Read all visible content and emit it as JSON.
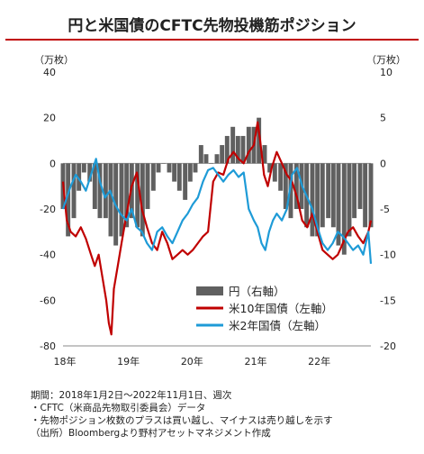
{
  "title": "円と米国債のCFTC先物投機筋ポジション",
  "left_unit": "（万枚）",
  "right_unit": "（万枚）",
  "notes": [
    "期間：2018年1月2日～2022年11月1日、週次",
    "・CFTC（米商品先物取引委員会）データ",
    "・先物ポジション枚数のプラスは買い越し、マイナスは売り越しを示す",
    "（出所）Bloombergより野村アセットマネジメント作成"
  ],
  "chart_data": {
    "type": "line",
    "title": "円と米国債のCFTC先物投機筋ポジション",
    "x_ticks": [
      "18年",
      "19年",
      "20年",
      "21年",
      "22年"
    ],
    "x_range": [
      2018.0,
      2022.84
    ],
    "left_axis": {
      "ticks": [
        40,
        20,
        0,
        -20,
        -40,
        -60,
        -80
      ],
      "range": [
        -80,
        40
      ]
    },
    "right_axis": {
      "ticks": [
        10,
        5,
        0,
        -5,
        -10,
        -15,
        -20
      ],
      "range": [
        -20,
        10
      ]
    },
    "legend_position": "bottom-center",
    "series": [
      {
        "name": "円（右軸）",
        "type": "bar",
        "axis": "right",
        "color": "#606060",
        "points": [
          [
            2018.0,
            -5
          ],
          [
            2018.08,
            -8
          ],
          [
            2018.17,
            -6
          ],
          [
            2018.25,
            -3
          ],
          [
            2018.33,
            -1
          ],
          [
            2018.42,
            -2
          ],
          [
            2018.5,
            -5
          ],
          [
            2018.58,
            -6
          ],
          [
            2018.67,
            -6
          ],
          [
            2018.75,
            -8
          ],
          [
            2018.83,
            -9
          ],
          [
            2018.92,
            -8
          ],
          [
            2019.0,
            -7
          ],
          [
            2019.08,
            -6
          ],
          [
            2019.17,
            -7
          ],
          [
            2019.25,
            -8
          ],
          [
            2019.33,
            -5
          ],
          [
            2019.42,
            -3
          ],
          [
            2019.5,
            -1
          ],
          [
            2019.58,
            0
          ],
          [
            2019.67,
            -1
          ],
          [
            2019.75,
            -2
          ],
          [
            2019.83,
            -3
          ],
          [
            2019.92,
            -4
          ],
          [
            2020.0,
            -2
          ],
          [
            2020.08,
            -1
          ],
          [
            2020.17,
            2
          ],
          [
            2020.25,
            1
          ],
          [
            2020.33,
            0
          ],
          [
            2020.42,
            1
          ],
          [
            2020.5,
            2
          ],
          [
            2020.58,
            3
          ],
          [
            2020.67,
            4
          ],
          [
            2020.75,
            3
          ],
          [
            2020.83,
            3
          ],
          [
            2020.92,
            4
          ],
          [
            2021.0,
            4
          ],
          [
            2021.08,
            5
          ],
          [
            2021.17,
            2
          ],
          [
            2021.25,
            -1
          ],
          [
            2021.33,
            -2
          ],
          [
            2021.42,
            -3
          ],
          [
            2021.5,
            -5
          ],
          [
            2021.58,
            -6
          ],
          [
            2021.67,
            -5
          ],
          [
            2021.75,
            -5
          ],
          [
            2021.83,
            -7
          ],
          [
            2021.92,
            -8
          ],
          [
            2022.0,
            -8
          ],
          [
            2022.08,
            -7
          ],
          [
            2022.17,
            -6
          ],
          [
            2022.25,
            -7
          ],
          [
            2022.33,
            -9
          ],
          [
            2022.42,
            -10
          ],
          [
            2022.5,
            -8
          ],
          [
            2022.58,
            -6
          ],
          [
            2022.67,
            -5
          ],
          [
            2022.75,
            -7
          ],
          [
            2022.84,
            -7
          ]
        ]
      },
      {
        "name": "米10年国債（左軸）",
        "type": "line",
        "axis": "left",
        "color": "#c00000",
        "points": [
          [
            2018.0,
            -8
          ],
          [
            2018.06,
            -25
          ],
          [
            2018.12,
            -30
          ],
          [
            2018.2,
            -32
          ],
          [
            2018.28,
            -28
          ],
          [
            2018.36,
            -33
          ],
          [
            2018.44,
            -40
          ],
          [
            2018.5,
            -45
          ],
          [
            2018.56,
            -40
          ],
          [
            2018.62,
            -50
          ],
          [
            2018.68,
            -60
          ],
          [
            2018.72,
            -70
          ],
          [
            2018.76,
            -75
          ],
          [
            2018.8,
            -55
          ],
          [
            2018.86,
            -45
          ],
          [
            2018.92,
            -35
          ],
          [
            2019.0,
            -22
          ],
          [
            2019.08,
            -10
          ],
          [
            2019.16,
            -4
          ],
          [
            2019.24,
            -20
          ],
          [
            2019.32,
            -28
          ],
          [
            2019.4,
            -35
          ],
          [
            2019.48,
            -38
          ],
          [
            2019.56,
            -30
          ],
          [
            2019.64,
            -35
          ],
          [
            2019.72,
            -42
          ],
          [
            2019.8,
            -40
          ],
          [
            2019.88,
            -38
          ],
          [
            2019.96,
            -40
          ],
          [
            2020.04,
            -38
          ],
          [
            2020.12,
            -35
          ],
          [
            2020.2,
            -32
          ],
          [
            2020.28,
            -30
          ],
          [
            2020.36,
            -8
          ],
          [
            2020.44,
            -4
          ],
          [
            2020.52,
            -5
          ],
          [
            2020.6,
            2
          ],
          [
            2020.68,
            5
          ],
          [
            2020.76,
            2
          ],
          [
            2020.84,
            0
          ],
          [
            2020.92,
            5
          ],
          [
            2021.0,
            8
          ],
          [
            2021.06,
            18
          ],
          [
            2021.1,
            10
          ],
          [
            2021.16,
            -5
          ],
          [
            2021.22,
            -10
          ],
          [
            2021.28,
            -2
          ],
          [
            2021.36,
            5
          ],
          [
            2021.44,
            0
          ],
          [
            2021.52,
            -5
          ],
          [
            2021.6,
            -8
          ],
          [
            2021.68,
            -15
          ],
          [
            2021.76,
            -25
          ],
          [
            2021.84,
            -28
          ],
          [
            2021.92,
            -22
          ],
          [
            2022.0,
            -30
          ],
          [
            2022.08,
            -38
          ],
          [
            2022.16,
            -40
          ],
          [
            2022.24,
            -42
          ],
          [
            2022.32,
            -40
          ],
          [
            2022.4,
            -35
          ],
          [
            2022.48,
            -30
          ],
          [
            2022.56,
            -28
          ],
          [
            2022.64,
            -32
          ],
          [
            2022.72,
            -35
          ],
          [
            2022.8,
            -30
          ],
          [
            2022.84,
            -25
          ]
        ]
      },
      {
        "name": "米2年国債（左軸）",
        "type": "line",
        "axis": "left",
        "color": "#1e9bd7",
        "points": [
          [
            2018.0,
            -20
          ],
          [
            2018.06,
            -15
          ],
          [
            2018.12,
            -10
          ],
          [
            2018.2,
            -5
          ],
          [
            2018.28,
            -8
          ],
          [
            2018.36,
            -12
          ],
          [
            2018.44,
            -5
          ],
          [
            2018.52,
            2
          ],
          [
            2018.58,
            -8
          ],
          [
            2018.66,
            -15
          ],
          [
            2018.74,
            -12
          ],
          [
            2018.82,
            -18
          ],
          [
            2018.9,
            -22
          ],
          [
            2019.0,
            -25
          ],
          [
            2019.08,
            -20
          ],
          [
            2019.16,
            -28
          ],
          [
            2019.24,
            -30
          ],
          [
            2019.32,
            -35
          ],
          [
            2019.4,
            -38
          ],
          [
            2019.48,
            -30
          ],
          [
            2019.56,
            -28
          ],
          [
            2019.64,
            -32
          ],
          [
            2019.72,
            -35
          ],
          [
            2019.8,
            -30
          ],
          [
            2019.88,
            -25
          ],
          [
            2019.96,
            -22
          ],
          [
            2020.04,
            -18
          ],
          [
            2020.12,
            -15
          ],
          [
            2020.2,
            -8
          ],
          [
            2020.28,
            -3
          ],
          [
            2020.36,
            -2
          ],
          [
            2020.44,
            -5
          ],
          [
            2020.52,
            -8
          ],
          [
            2020.6,
            -5
          ],
          [
            2020.68,
            -3
          ],
          [
            2020.76,
            -6
          ],
          [
            2020.84,
            -4
          ],
          [
            2020.92,
            -20
          ],
          [
            2021.0,
            -25
          ],
          [
            2021.06,
            -28
          ],
          [
            2021.12,
            -35
          ],
          [
            2021.18,
            -38
          ],
          [
            2021.24,
            -30
          ],
          [
            2021.3,
            -25
          ],
          [
            2021.36,
            -22
          ],
          [
            2021.44,
            -25
          ],
          [
            2021.52,
            -20
          ],
          [
            2021.6,
            -5
          ],
          [
            2021.68,
            -2
          ],
          [
            2021.76,
            -10
          ],
          [
            2021.84,
            -15
          ],
          [
            2021.92,
            -20
          ],
          [
            2022.0,
            -28
          ],
          [
            2022.08,
            -35
          ],
          [
            2022.16,
            -38
          ],
          [
            2022.24,
            -35
          ],
          [
            2022.32,
            -30
          ],
          [
            2022.4,
            -32
          ],
          [
            2022.48,
            -35
          ],
          [
            2022.56,
            -38
          ],
          [
            2022.64,
            -36
          ],
          [
            2022.72,
            -40
          ],
          [
            2022.8,
            -30
          ],
          [
            2022.84,
            -44
          ]
        ]
      }
    ]
  }
}
